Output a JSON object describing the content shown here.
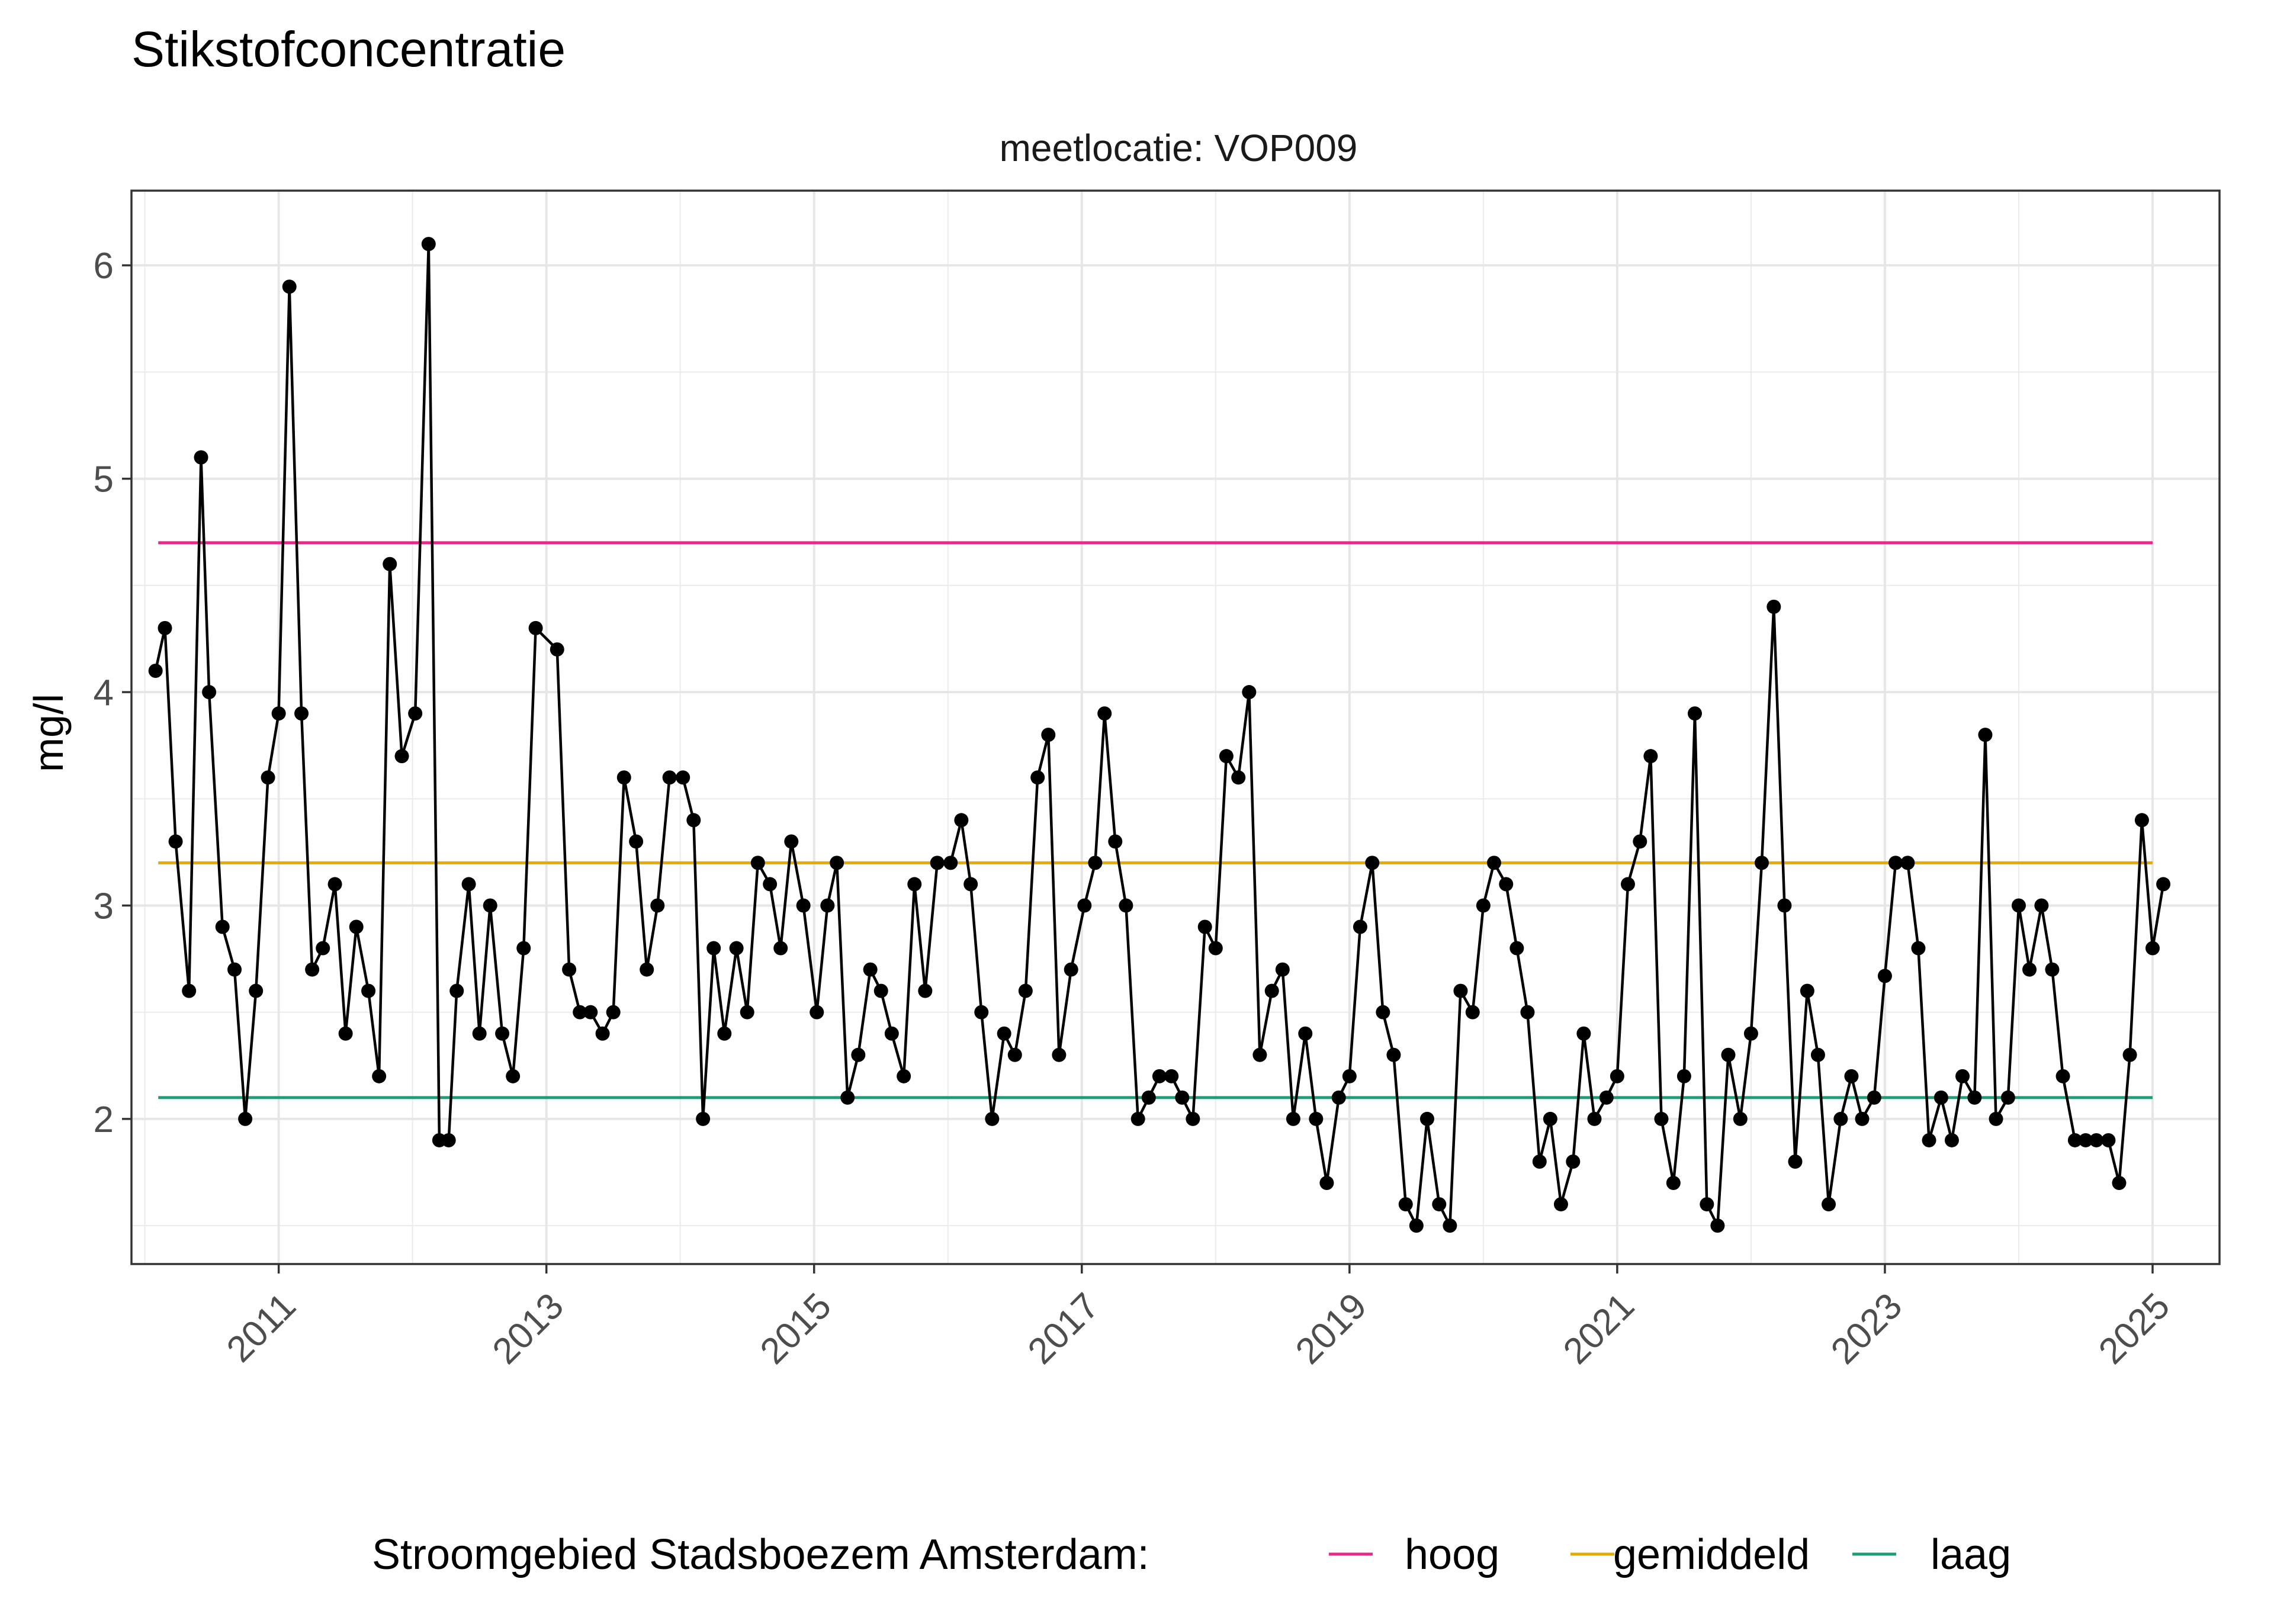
{
  "chart_data": {
    "type": "line",
    "title": "Stikstofconcentratie",
    "subtitle": "meetlocatie: VOP009",
    "ylabel": "mg/l",
    "xlabel": "",
    "x_ticks": [
      "2011",
      "2013",
      "2015",
      "2017",
      "2019",
      "2021",
      "2023",
      "2025"
    ],
    "y_ticks": [
      "2",
      "3",
      "4",
      "5",
      "6"
    ],
    "xlim": [
      2009.9,
      2025.5
    ],
    "ylim": [
      1.32,
      6.35
    ],
    "grid": true,
    "legend_position": "bottom",
    "legend": {
      "title": "Stroomgebied Stadsboezem Amsterdam:",
      "items": [
        {
          "label": "hoog",
          "color": "#E7298A"
        },
        {
          "label": "gemiddeld",
          "color": "#E6AB02"
        },
        {
          "label": "laag",
          "color": "#1B9E77"
        }
      ]
    },
    "reference_lines": [
      {
        "name": "hoog",
        "y": 4.7,
        "x_start": 2010.1,
        "x_end": 2025.0,
        "color": "#E7298A"
      },
      {
        "name": "gemiddeld",
        "y": 3.2,
        "x_start": 2010.1,
        "x_end": 2025.0,
        "color": "#E6AB02"
      },
      {
        "name": "laag",
        "y": 2.1,
        "x_start": 2010.1,
        "x_end": 2025.0,
        "color": "#1B9E77"
      }
    ],
    "series": [
      {
        "color": "#000000",
        "points": [
          [
            2010.08,
            4.1
          ],
          [
            2010.15,
            4.3
          ],
          [
            2010.23,
            3.3
          ],
          [
            2010.33,
            2.6
          ],
          [
            2010.42,
            5.1
          ],
          [
            2010.48,
            4.0
          ],
          [
            2010.58,
            2.9
          ],
          [
            2010.67,
            2.7
          ],
          [
            2010.75,
            2.0
          ],
          [
            2010.83,
            2.6
          ],
          [
            2010.92,
            3.6
          ],
          [
            2011.0,
            3.9
          ],
          [
            2011.08,
            5.9
          ],
          [
            2011.17,
            3.9
          ],
          [
            2011.25,
            2.7
          ],
          [
            2011.33,
            2.8
          ],
          [
            2011.42,
            3.1
          ],
          [
            2011.5,
            2.4
          ],
          [
            2011.58,
            2.9
          ],
          [
            2011.67,
            2.6
          ],
          [
            2011.75,
            2.2
          ],
          [
            2011.83,
            4.6
          ],
          [
            2011.92,
            3.7
          ],
          [
            2012.02,
            3.9
          ],
          [
            2012.12,
            6.1
          ],
          [
            2012.2,
            1.9
          ],
          [
            2012.27,
            1.9
          ],
          [
            2012.33,
            2.6
          ],
          [
            2012.42,
            3.1
          ],
          [
            2012.5,
            2.4
          ],
          [
            2012.58,
            3.0
          ],
          [
            2012.67,
            2.4
          ],
          [
            2012.75,
            2.2
          ],
          [
            2012.83,
            2.8
          ],
          [
            2012.92,
            4.3
          ],
          [
            2013.08,
            4.2
          ],
          [
            2013.17,
            2.7
          ],
          [
            2013.25,
            2.5
          ],
          [
            2013.33,
            2.5
          ],
          [
            2013.42,
            2.4
          ],
          [
            2013.5,
            2.5
          ],
          [
            2013.58,
            3.6
          ],
          [
            2013.67,
            3.3
          ],
          [
            2013.75,
            2.7
          ],
          [
            2013.83,
            3.0
          ],
          [
            2013.92,
            3.6
          ],
          [
            2014.02,
            3.6
          ],
          [
            2014.1,
            3.4
          ],
          [
            2014.17,
            2.0
          ],
          [
            2014.25,
            2.8
          ],
          [
            2014.33,
            2.4
          ],
          [
            2014.42,
            2.8
          ],
          [
            2014.5,
            2.5
          ],
          [
            2014.58,
            3.2
          ],
          [
            2014.67,
            3.1
          ],
          [
            2014.75,
            2.8
          ],
          [
            2014.83,
            3.3
          ],
          [
            2014.92,
            3.0
          ],
          [
            2015.02,
            2.5
          ],
          [
            2015.1,
            3.0
          ],
          [
            2015.17,
            3.2
          ],
          [
            2015.25,
            2.1
          ],
          [
            2015.33,
            2.3
          ],
          [
            2015.42,
            2.7
          ],
          [
            2015.5,
            2.6
          ],
          [
            2015.58,
            2.4
          ],
          [
            2015.67,
            2.2
          ],
          [
            2015.75,
            3.1
          ],
          [
            2015.83,
            2.6
          ],
          [
            2015.92,
            3.2
          ],
          [
            2016.02,
            3.2
          ],
          [
            2016.1,
            3.4
          ],
          [
            2016.17,
            3.1
          ],
          [
            2016.25,
            2.5
          ],
          [
            2016.33,
            2.0
          ],
          [
            2016.42,
            2.4
          ],
          [
            2016.5,
            2.3
          ],
          [
            2016.58,
            2.6
          ],
          [
            2016.67,
            3.6
          ],
          [
            2016.75,
            3.8
          ],
          [
            2016.83,
            2.3
          ],
          [
            2016.92,
            2.7
          ],
          [
            2017.02,
            3.0
          ],
          [
            2017.1,
            3.2
          ],
          [
            2017.17,
            3.9
          ],
          [
            2017.25,
            3.3
          ],
          [
            2017.33,
            3.0
          ],
          [
            2017.42,
            2.0
          ],
          [
            2017.5,
            2.1
          ],
          [
            2017.58,
            2.2
          ],
          [
            2017.67,
            2.2
          ],
          [
            2017.75,
            2.1
          ],
          [
            2017.83,
            2.0
          ],
          [
            2017.92,
            2.9
          ],
          [
            2018.0,
            2.8
          ],
          [
            2018.08,
            3.7
          ],
          [
            2018.17,
            3.6
          ],
          [
            2018.25,
            4.0
          ],
          [
            2018.33,
            2.3
          ],
          [
            2018.42,
            2.6
          ],
          [
            2018.5,
            2.7
          ],
          [
            2018.58,
            2.0
          ],
          [
            2018.67,
            2.4
          ],
          [
            2018.75,
            2.0
          ],
          [
            2018.83,
            1.7
          ],
          [
            2018.92,
            2.1
          ],
          [
            2019.0,
            2.2
          ],
          [
            2019.08,
            2.9
          ],
          [
            2019.17,
            3.2
          ],
          [
            2019.25,
            2.5
          ],
          [
            2019.33,
            2.3
          ],
          [
            2019.42,
            1.6
          ],
          [
            2019.5,
            1.5
          ],
          [
            2019.58,
            2.0
          ],
          [
            2019.67,
            1.6
          ],
          [
            2019.75,
            1.5
          ],
          [
            2019.83,
            2.6
          ],
          [
            2019.92,
            2.5
          ],
          [
            2020.0,
            3.0
          ],
          [
            2020.08,
            3.2
          ],
          [
            2020.17,
            3.1
          ],
          [
            2020.25,
            2.8
          ],
          [
            2020.33,
            2.5
          ],
          [
            2020.42,
            1.8
          ],
          [
            2020.5,
            2.0
          ],
          [
            2020.58,
            1.6
          ],
          [
            2020.67,
            1.8
          ],
          [
            2020.75,
            2.4
          ],
          [
            2020.83,
            2.0
          ],
          [
            2020.92,
            2.1
          ],
          [
            2021.0,
            2.2
          ],
          [
            2021.08,
            3.1
          ],
          [
            2021.17,
            3.3
          ],
          [
            2021.25,
            3.7
          ],
          [
            2021.33,
            2.0
          ],
          [
            2021.42,
            1.7
          ],
          [
            2021.5,
            2.2
          ],
          [
            2021.58,
            3.9
          ],
          [
            2021.67,
            1.6
          ],
          [
            2021.75,
            1.5
          ],
          [
            2021.83,
            2.3
          ],
          [
            2021.92,
            2.0
          ],
          [
            2022.0,
            2.4
          ],
          [
            2022.08,
            3.2
          ],
          [
            2022.17,
            4.4
          ],
          [
            2022.25,
            3.0
          ],
          [
            2022.33,
            1.8
          ],
          [
            2022.42,
            2.6
          ],
          [
            2022.5,
            2.3
          ],
          [
            2022.58,
            1.6
          ],
          [
            2022.67,
            2.0
          ],
          [
            2022.75,
            2.2
          ],
          [
            2022.83,
            2.0
          ],
          [
            2022.92,
            2.1
          ],
          [
            2023.0,
            2.67
          ],
          [
            2023.08,
            3.2
          ],
          [
            2023.17,
            3.2
          ],
          [
            2023.25,
            2.8
          ],
          [
            2023.33,
            1.9
          ],
          [
            2023.42,
            2.1
          ],
          [
            2023.5,
            1.9
          ],
          [
            2023.58,
            2.2
          ],
          [
            2023.67,
            2.1
          ],
          [
            2023.75,
            3.8
          ],
          [
            2023.83,
            2.0
          ],
          [
            2023.92,
            2.1
          ],
          [
            2024.0,
            3.0
          ],
          [
            2024.08,
            2.7
          ],
          [
            2024.17,
            3.0
          ],
          [
            2024.25,
            2.7
          ],
          [
            2024.33,
            2.2
          ],
          [
            2024.42,
            1.9
          ],
          [
            2024.5,
            1.9
          ],
          [
            2024.58,
            1.9
          ],
          [
            2024.67,
            1.9
          ],
          [
            2024.75,
            1.7
          ],
          [
            2024.83,
            2.3
          ],
          [
            2024.92,
            3.4
          ],
          [
            2025.0,
            2.8
          ],
          [
            2025.08,
            3.1
          ]
        ]
      }
    ]
  }
}
